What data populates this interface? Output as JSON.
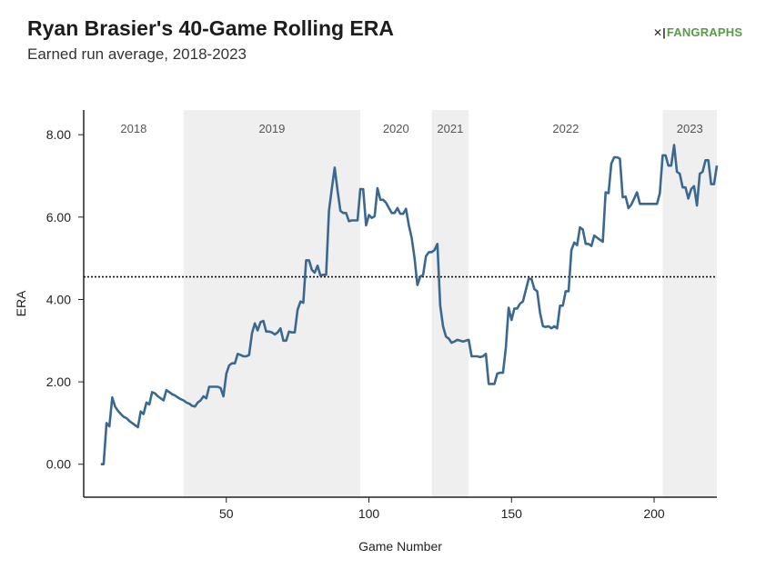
{
  "header": {
    "title": "Ryan Brasier's 40-Game Rolling ERA",
    "subtitle": "Earned run average, 2018-2023",
    "logo_mark": "✕|",
    "logo_text": "FANGRAPHS"
  },
  "colors": {
    "line": "#3a6891",
    "band": "#efefef",
    "reference": "#111111",
    "logo": "#54a041"
  },
  "chart_data": {
    "type": "line",
    "title": "Ryan Brasier's 40-Game Rolling ERA",
    "subtitle": "Earned run average, 2018-2023",
    "xlabel": "Game Number",
    "ylabel": "ERA",
    "xlim": [
      0,
      222
    ],
    "ylim": [
      -0.8,
      8.6
    ],
    "x_ticks": [
      50,
      100,
      150,
      200
    ],
    "y_ticks": [
      0,
      2,
      4,
      6,
      8
    ],
    "y_tick_labels": [
      "0.00",
      "2.00",
      "4.00",
      "6.00",
      "8.00"
    ],
    "reference_line": 4.55,
    "seasons": [
      {
        "label": "2018",
        "start": 0,
        "end": 35,
        "shaded": false
      },
      {
        "label": "2019",
        "start": 35,
        "end": 97,
        "shaded": true
      },
      {
        "label": "2020",
        "start": 97,
        "end": 122,
        "shaded": false
      },
      {
        "label": "2021",
        "start": 122,
        "end": 135,
        "shaded": true
      },
      {
        "label": "2022",
        "start": 135,
        "end": 203,
        "shaded": false
      },
      {
        "label": "2023",
        "start": 203,
        "end": 222,
        "shaded": true
      }
    ],
    "series": [
      {
        "points": [
          [
            6,
            0.0
          ],
          [
            7,
            0.0
          ],
          [
            8,
            1.0
          ],
          [
            9,
            0.92
          ],
          [
            10,
            1.62
          ],
          [
            11,
            1.4
          ],
          [
            12,
            1.3
          ],
          [
            13,
            1.22
          ],
          [
            14,
            1.15
          ],
          [
            15,
            1.12
          ],
          [
            16,
            1.05
          ],
          [
            17,
            1.0
          ],
          [
            18,
            0.95
          ],
          [
            19,
            0.9
          ],
          [
            20,
            1.28
          ],
          [
            21,
            1.22
          ],
          [
            22,
            1.5
          ],
          [
            23,
            1.45
          ],
          [
            24,
            1.75
          ],
          [
            25,
            1.72
          ],
          [
            26,
            1.65
          ],
          [
            27,
            1.6
          ],
          [
            28,
            1.55
          ],
          [
            29,
            1.8
          ],
          [
            30,
            1.75
          ],
          [
            31,
            1.7
          ],
          [
            32,
            1.67
          ],
          [
            33,
            1.62
          ],
          [
            34,
            1.58
          ],
          [
            35,
            1.55
          ],
          [
            36,
            1.5
          ],
          [
            37,
            1.47
          ],
          [
            38,
            1.42
          ],
          [
            39,
            1.4
          ],
          [
            40,
            1.5
          ],
          [
            41,
            1.55
          ],
          [
            42,
            1.65
          ],
          [
            43,
            1.6
          ],
          [
            44,
            1.88
          ],
          [
            45,
            1.88
          ],
          [
            46,
            1.88
          ],
          [
            47,
            1.88
          ],
          [
            48,
            1.85
          ],
          [
            49,
            1.65
          ],
          [
            50,
            2.2
          ],
          [
            51,
            2.4
          ],
          [
            52,
            2.45
          ],
          [
            53,
            2.45
          ],
          [
            54,
            2.68
          ],
          [
            55,
            2.65
          ],
          [
            56,
            2.62
          ],
          [
            57,
            2.62
          ],
          [
            58,
            2.65
          ],
          [
            59,
            3.18
          ],
          [
            60,
            3.42
          ],
          [
            61,
            3.25
          ],
          [
            62,
            3.45
          ],
          [
            63,
            3.48
          ],
          [
            64,
            3.22
          ],
          [
            65,
            3.22
          ],
          [
            66,
            3.2
          ],
          [
            67,
            3.15
          ],
          [
            68,
            3.2
          ],
          [
            69,
            3.3
          ],
          [
            70,
            3.0
          ],
          [
            71,
            3.0
          ],
          [
            72,
            3.22
          ],
          [
            73,
            3.2
          ],
          [
            74,
            3.2
          ],
          [
            75,
            3.75
          ],
          [
            76,
            3.95
          ],
          [
            77,
            3.92
          ],
          [
            78,
            4.95
          ],
          [
            79,
            4.95
          ],
          [
            80,
            4.72
          ],
          [
            81,
            4.65
          ],
          [
            82,
            4.82
          ],
          [
            83,
            4.58
          ],
          [
            84,
            4.6
          ],
          [
            85,
            4.6
          ],
          [
            86,
            6.15
          ],
          [
            87,
            6.7
          ],
          [
            88,
            7.2
          ],
          [
            89,
            6.65
          ],
          [
            90,
            6.15
          ],
          [
            91,
            6.1
          ],
          [
            92,
            6.1
          ],
          [
            93,
            5.9
          ],
          [
            94,
            5.92
          ],
          [
            95,
            5.92
          ],
          [
            96,
            5.92
          ],
          [
            97,
            6.68
          ],
          [
            98,
            6.68
          ],
          [
            99,
            5.8
          ],
          [
            100,
            6.05
          ],
          [
            101,
            5.98
          ],
          [
            102,
            6.02
          ],
          [
            103,
            6.7
          ],
          [
            104,
            6.42
          ],
          [
            105,
            6.42
          ],
          [
            106,
            6.35
          ],
          [
            107,
            6.22
          ],
          [
            108,
            6.1
          ],
          [
            109,
            6.1
          ],
          [
            110,
            6.22
          ],
          [
            111,
            6.08
          ],
          [
            112,
            6.08
          ],
          [
            113,
            6.2
          ],
          [
            114,
            5.8
          ],
          [
            115,
            5.5
          ],
          [
            116,
            5.0
          ],
          [
            117,
            4.35
          ],
          [
            118,
            4.55
          ],
          [
            119,
            4.6
          ],
          [
            120,
            5.05
          ],
          [
            121,
            5.15
          ],
          [
            122,
            5.15
          ],
          [
            123,
            5.2
          ],
          [
            124,
            5.35
          ],
          [
            125,
            3.85
          ],
          [
            126,
            3.35
          ],
          [
            127,
            3.1
          ],
          [
            128,
            3.05
          ],
          [
            129,
            2.95
          ],
          [
            130,
            2.98
          ],
          [
            131,
            3.02
          ],
          [
            132,
            3.0
          ],
          [
            133,
            2.98
          ],
          [
            134,
            3.0
          ],
          [
            135,
            3.02
          ],
          [
            136,
            2.62
          ],
          [
            137,
            2.62
          ],
          [
            138,
            2.62
          ],
          [
            139,
            2.6
          ],
          [
            140,
            2.62
          ],
          [
            141,
            2.68
          ],
          [
            142,
            1.95
          ],
          [
            143,
            1.95
          ],
          [
            144,
            1.95
          ],
          [
            145,
            2.2
          ],
          [
            146,
            2.22
          ],
          [
            147,
            2.22
          ],
          [
            148,
            2.82
          ],
          [
            149,
            3.8
          ],
          [
            150,
            3.5
          ],
          [
            151,
            3.78
          ],
          [
            152,
            3.78
          ],
          [
            153,
            3.9
          ],
          [
            154,
            3.95
          ],
          [
            155,
            4.22
          ],
          [
            156,
            4.5
          ],
          [
            157,
            4.5
          ],
          [
            158,
            4.25
          ],
          [
            159,
            4.2
          ],
          [
            160,
            3.68
          ],
          [
            161,
            3.35
          ],
          [
            162,
            3.33
          ],
          [
            163,
            3.35
          ],
          [
            164,
            3.3
          ],
          [
            165,
            3.35
          ],
          [
            166,
            3.3
          ],
          [
            167,
            3.85
          ],
          [
            168,
            3.85
          ],
          [
            169,
            4.2
          ],
          [
            170,
            4.2
          ],
          [
            171,
            5.2
          ],
          [
            172,
            5.38
          ],
          [
            173,
            5.32
          ],
          [
            174,
            5.75
          ],
          [
            175,
            5.7
          ],
          [
            176,
            5.35
          ],
          [
            177,
            5.35
          ],
          [
            178,
            5.3
          ],
          [
            179,
            5.55
          ],
          [
            180,
            5.5
          ],
          [
            181,
            5.45
          ],
          [
            182,
            5.4
          ],
          [
            183,
            6.6
          ],
          [
            184,
            6.58
          ],
          [
            185,
            7.3
          ],
          [
            186,
            7.45
          ],
          [
            187,
            7.45
          ],
          [
            188,
            7.42
          ],
          [
            189,
            6.48
          ],
          [
            190,
            6.5
          ],
          [
            191,
            6.22
          ],
          [
            192,
            6.3
          ],
          [
            193,
            6.45
          ],
          [
            194,
            6.6
          ],
          [
            195,
            6.32
          ],
          [
            196,
            6.32
          ],
          [
            197,
            6.32
          ],
          [
            198,
            6.32
          ],
          [
            199,
            6.32
          ],
          [
            200,
            6.32
          ],
          [
            201,
            6.32
          ],
          [
            202,
            6.58
          ],
          [
            203,
            7.5
          ],
          [
            204,
            7.5
          ],
          [
            205,
            7.25
          ],
          [
            206,
            7.25
          ],
          [
            207,
            7.75
          ],
          [
            208,
            7.1
          ],
          [
            209,
            7.05
          ],
          [
            210,
            6.72
          ],
          [
            211,
            6.72
          ],
          [
            212,
            6.45
          ],
          [
            213,
            6.68
          ],
          [
            214,
            6.75
          ],
          [
            215,
            6.28
          ],
          [
            216,
            7.05
          ],
          [
            217,
            7.1
          ],
          [
            218,
            7.38
          ],
          [
            219,
            7.38
          ],
          [
            220,
            6.8
          ],
          [
            221,
            6.8
          ],
          [
            222,
            7.25
          ]
        ]
      }
    ]
  }
}
